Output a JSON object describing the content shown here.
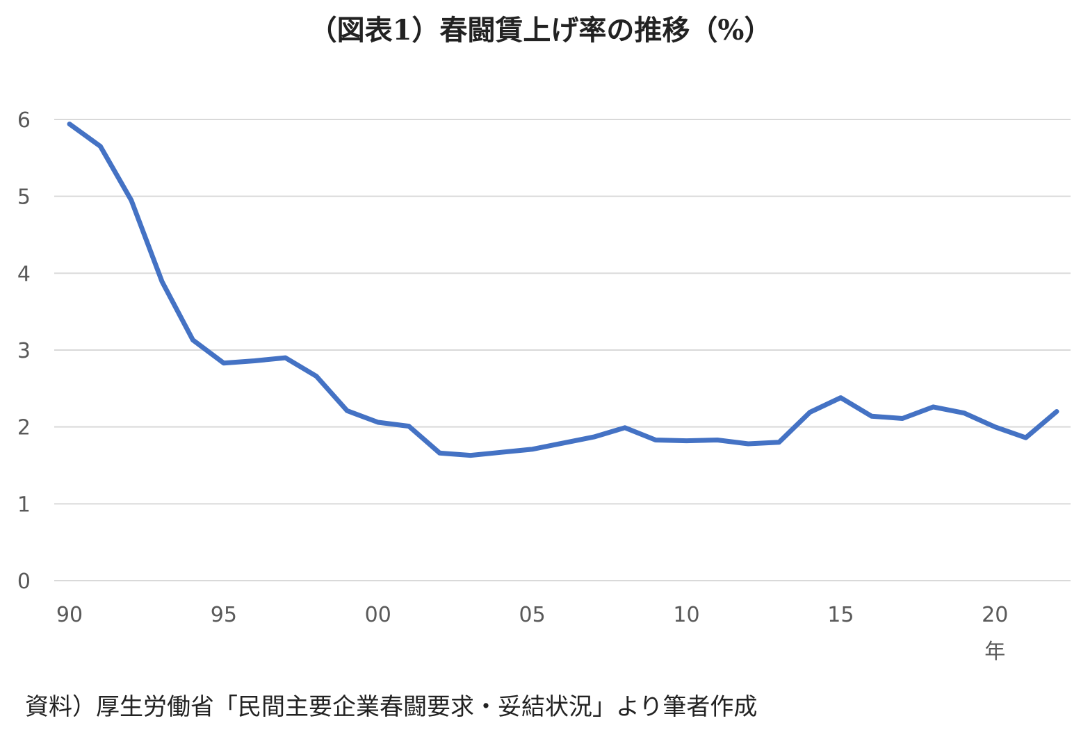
{
  "title": "（図表1）春闘賃上げ率の推移（%）",
  "source_note": "資料）厚生労働省「民間主要企業春闘要求・妥結状況」より筆者作成",
  "colors": {
    "line": "#4472C4",
    "grid": "#D9D9D9",
    "tick_text": "#595959"
  },
  "chart_data": {
    "type": "line",
    "title": "（図表1）春闘賃上げ率の推移（%）",
    "xlabel": "年",
    "ylabel": "",
    "ylim": [
      0,
      6
    ],
    "yticks": [
      0,
      1,
      2,
      3,
      4,
      5,
      6
    ],
    "xlim": [
      1990,
      2022
    ],
    "xticks": [
      {
        "value": 1990,
        "label": "90"
      },
      {
        "value": 1995,
        "label": "95"
      },
      {
        "value": 2000,
        "label": "00"
      },
      {
        "value": 2005,
        "label": "05"
      },
      {
        "value": 2010,
        "label": "10"
      },
      {
        "value": 2015,
        "label": "15"
      },
      {
        "value": 2020,
        "label": "20"
      }
    ],
    "grid": true,
    "legend": "none",
    "x": [
      1990,
      1991,
      1992,
      1993,
      1994,
      1995,
      1996,
      1997,
      1998,
      1999,
      2000,
      2001,
      2002,
      2003,
      2004,
      2005,
      2006,
      2007,
      2008,
      2009,
      2010,
      2011,
      2012,
      2013,
      2014,
      2015,
      2016,
      2017,
      2018,
      2019,
      2020,
      2021,
      2022
    ],
    "series": [
      {
        "values": [
          5.94,
          5.65,
          4.95,
          3.89,
          3.13,
          2.83,
          2.86,
          2.9,
          2.66,
          2.21,
          2.06,
          2.01,
          1.66,
          1.63,
          1.67,
          1.71,
          1.79,
          1.87,
          1.99,
          1.83,
          1.82,
          1.83,
          1.78,
          1.8,
          2.19,
          2.38,
          2.14,
          2.11,
          2.26,
          2.18,
          2.0,
          1.86,
          2.2
        ]
      }
    ]
  }
}
